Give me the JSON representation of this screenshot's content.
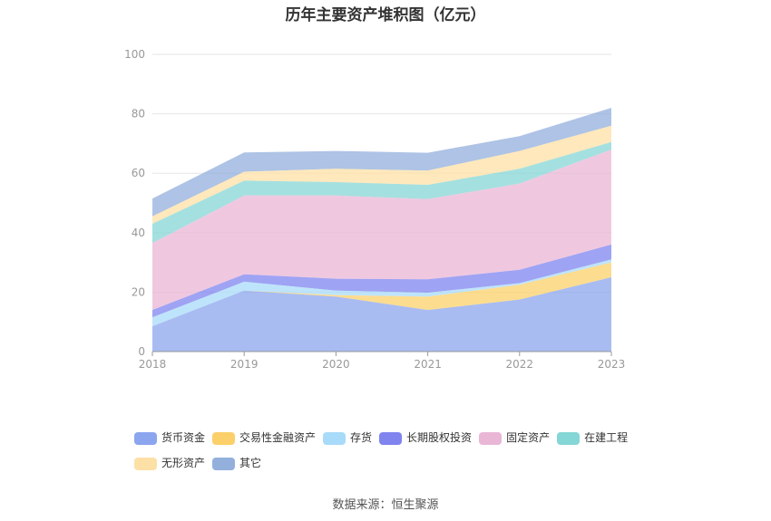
{
  "chart_data": {
    "type": "area",
    "stacked": true,
    "title": "历年主要资产堆积图（亿元）",
    "x": [
      "2018",
      "2019",
      "2020",
      "2021",
      "2022",
      "2023"
    ],
    "y_ticks": [
      "0",
      "20",
      "40",
      "60",
      "80",
      "100"
    ],
    "ylim": [
      0,
      100
    ],
    "grid": true,
    "legend_position": "bottom",
    "series": [
      {
        "name": "货币资金",
        "color": "#8ba5ee",
        "values": [
          8.5,
          20.5,
          18.5,
          14,
          17.5,
          25
        ]
      },
      {
        "name": "交易性金融资产",
        "color": "#fbd06a",
        "values": [
          0,
          0,
          0.5,
          4.5,
          5,
          5
        ]
      },
      {
        "name": "存货",
        "color": "#a8dbf9",
        "values": [
          3,
          3,
          1.5,
          1.3,
          0.5,
          1
        ]
      },
      {
        "name": "长期股权投资",
        "color": "#7f84ef",
        "values": [
          2.5,
          2.5,
          4,
          4.5,
          4.5,
          5
        ]
      },
      {
        "name": "固定资产",
        "color": "#e9b6d6",
        "values": [
          22.5,
          26.5,
          28,
          27,
          29,
          32
        ]
      },
      {
        "name": "在建工程",
        "color": "#85d6d6",
        "values": [
          6.5,
          5,
          4.5,
          4.8,
          5,
          2.5
        ]
      },
      {
        "name": "无形资产",
        "color": "#fde0a6",
        "values": [
          2.5,
          3,
          4.5,
          4.8,
          6,
          5.5
        ]
      },
      {
        "name": "其它",
        "color": "#93afdc",
        "values": [
          6,
          6.5,
          6,
          6,
          5,
          6
        ]
      }
    ]
  },
  "source_text": "数据来源：恒生聚源"
}
